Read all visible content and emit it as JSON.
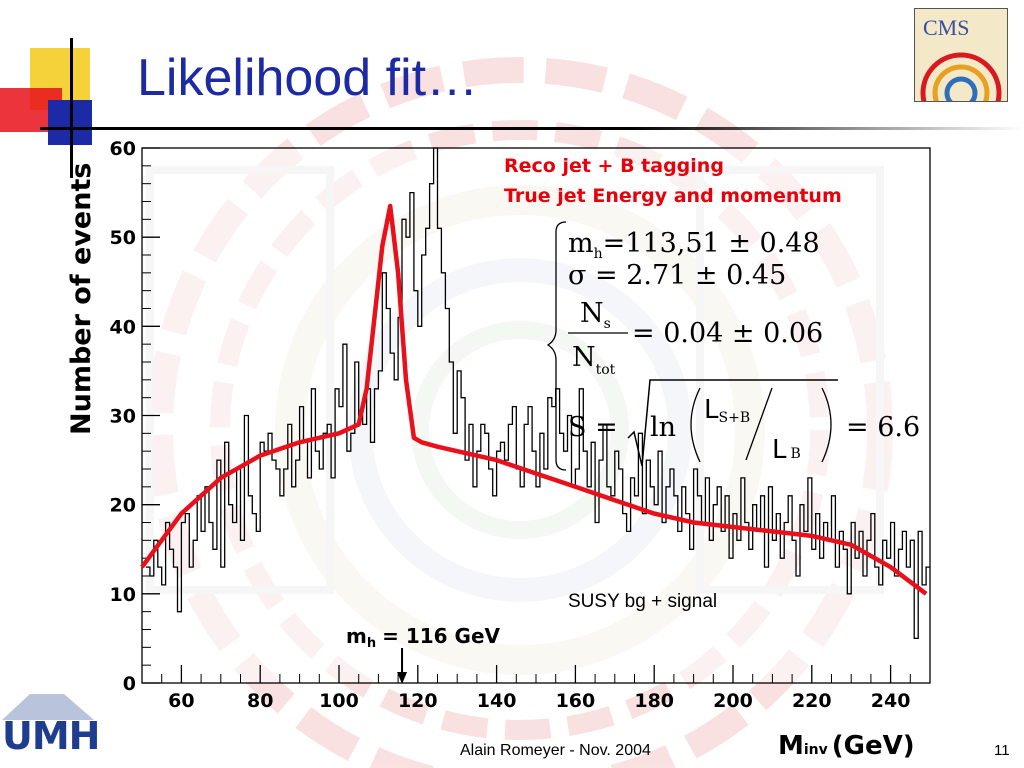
{
  "slide": {
    "title": "Likelihood fit…",
    "footer": "Alain Romeyer - Nov. 2004",
    "page_number": "11",
    "logo_right": "CMS",
    "logo_left": "UMH"
  },
  "colors": {
    "title": "#1c2aa6",
    "fit": "#e8101a",
    "annotation": "#e8000b",
    "histogram": "#000000"
  },
  "annotations": {
    "line1": "Reco jet + B tagging",
    "line2": "True jet Energy and momentum",
    "bg_label": "SUSY bg + signal",
    "mh_label": "m",
    "mh_sub": "h",
    "mh_value": "= 116 GeV"
  },
  "formula": {
    "mh": "m",
    "mh_sub": "h",
    "mh_val": "=113,51 ± 0.48",
    "sigma": "σ = 2.71 ± 0.45",
    "ns": "N",
    "ns_sub": "s",
    "ntot": "N",
    "ntot_sub": "tot",
    "ratio_val": "= 0.04 ± 0.06",
    "s_label": "S =",
    "ln": "ln",
    "L1": "L",
    "L1_sub": "S+B",
    "L2": "L",
    "L2_sub": "B",
    "s_val": "= 6.6"
  },
  "chart_data": {
    "type": "line",
    "xlabel": "M",
    "xlabel_sub": "inv",
    "xlabel_unit": "(GeV)",
    "ylabel": "Number of events",
    "xlim": [
      50,
      250
    ],
    "ylim": [
      0,
      60
    ],
    "xticks": [
      60,
      80,
      100,
      120,
      140,
      160,
      180,
      200,
      220,
      240
    ],
    "yticks": [
      0,
      10,
      20,
      30,
      40,
      50,
      60
    ],
    "marker_x": 116,
    "histogram": {
      "bin_width": 1,
      "x_start": 51,
      "values": [
        13,
        12,
        16,
        13,
        11,
        18,
        15,
        13,
        8,
        18,
        19,
        13,
        16,
        21,
        17,
        22,
        18,
        15,
        25,
        13,
        27,
        20,
        18,
        24,
        16,
        30,
        21,
        19,
        17,
        27,
        26,
        28,
        25,
        24,
        21,
        24,
        29,
        22,
        25,
        31,
        27,
        23,
        33,
        26,
        24,
        28,
        29,
        23,
        33,
        31,
        38,
        26,
        28,
        36,
        30,
        29,
        33,
        27,
        33,
        35,
        46,
        42,
        37,
        34,
        41,
        52,
        50,
        55,
        44,
        40,
        48,
        51,
        56,
        60,
        51,
        46,
        42,
        36,
        28,
        35,
        32,
        25,
        29,
        22,
        26,
        29,
        28,
        24,
        21,
        26,
        27,
        25,
        29,
        31,
        24,
        22,
        29,
        31,
        26,
        22,
        28,
        24,
        32,
        31,
        33,
        28,
        26,
        30,
        22,
        24,
        33,
        26,
        22,
        27,
        18,
        25,
        29,
        22,
        21,
        26,
        24,
        19,
        17,
        23,
        21,
        28,
        19,
        25,
        22,
        20,
        26,
        18,
        22,
        24,
        21,
        17,
        22,
        19,
        15,
        24,
        21,
        18,
        23,
        16,
        20,
        22,
        17,
        21,
        14,
        19,
        16,
        23,
        18,
        15,
        20,
        17,
        21,
        13,
        22,
        16,
        19,
        14,
        18,
        21,
        16,
        12,
        20,
        17,
        23,
        15,
        19,
        14,
        18,
        16,
        21,
        13,
        17,
        15,
        10,
        18,
        14,
        17,
        12,
        16,
        19,
        13,
        11,
        16,
        14,
        18,
        12,
        15,
        17,
        13,
        16,
        5,
        17,
        11,
        13
      ]
    },
    "fit": {
      "x": [
        50,
        60,
        70,
        80,
        90,
        100,
        105,
        107,
        109,
        111,
        113,
        115,
        117,
        119,
        121,
        125,
        130,
        140,
        150,
        160,
        170,
        180,
        190,
        200,
        210,
        220,
        230,
        240,
        249
      ],
      "y": [
        13,
        19,
        23,
        25.5,
        27,
        28,
        29,
        33,
        41,
        49,
        53.5,
        46,
        34,
        27.5,
        27,
        26.5,
        26,
        25,
        23.5,
        22,
        20.5,
        19,
        18,
        17.5,
        17,
        16.5,
        15.5,
        13,
        10
      ]
    }
  }
}
